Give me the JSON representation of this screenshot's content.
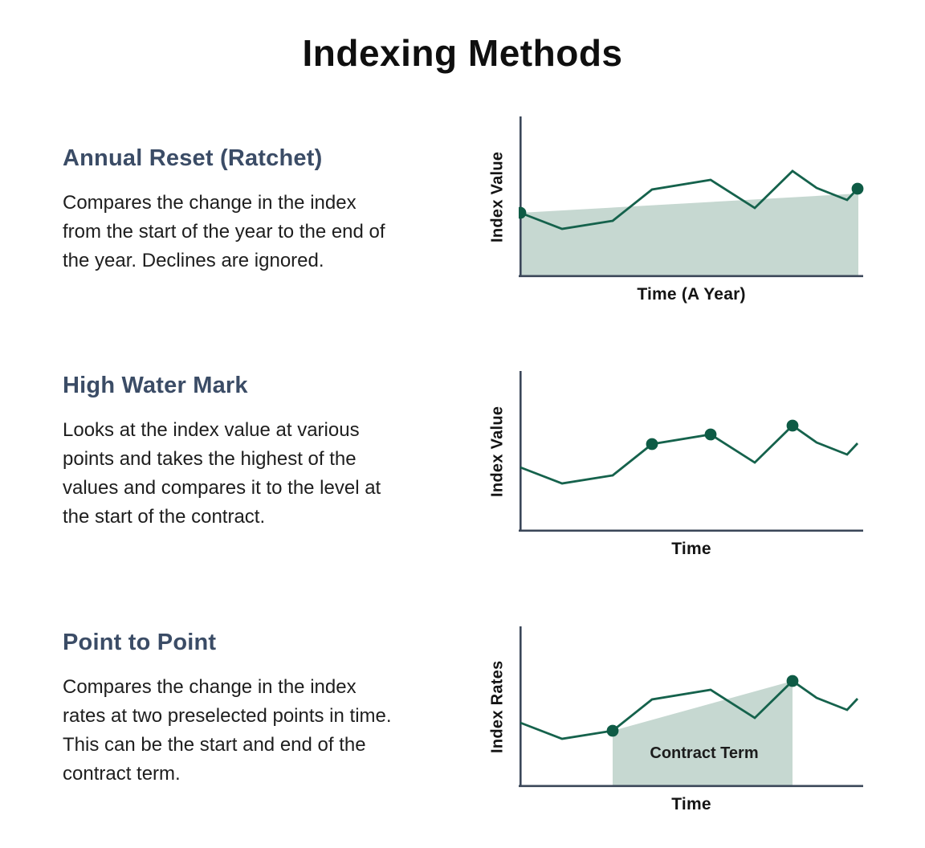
{
  "title": "Indexing Methods",
  "colors": {
    "line": "#15624c",
    "dot": "#0e5b45",
    "shade": "#c6d8d1",
    "axis": "#3b4759",
    "heading": "#3b4c66",
    "shade_label_text": "#1c1c1c"
  },
  "sections": [
    {
      "heading": "Annual Reset (Ratchet)",
      "description_lines": [
        "Compares the change in the index",
        "from the start of the year to the end of",
        "the year. Declines are ignored."
      ],
      "chart": {
        "ylabel": "Index Value",
        "xlabel": "Time (A Year)"
      }
    },
    {
      "heading": "High Water Mark",
      "description_lines": [
        "Looks at the index value at various",
        "points and takes the highest of the",
        "values and compares it to the level at",
        "the start of the contract."
      ],
      "chart": {
        "ylabel": "Index Value",
        "xlabel": "Time"
      }
    },
    {
      "heading": "Point to Point",
      "description_lines": [
        "Compares the change in the index",
        "rates at two preselected points in time.",
        "This can be the start and end of the",
        "contract term."
      ],
      "chart": {
        "ylabel": "Index Rates",
        "xlabel": "Time"
      }
    }
  ],
  "chart_data": [
    {
      "type": "line",
      "title": "Annual Reset (Ratchet)",
      "xlabel": "Time (A Year)",
      "ylabel": "Index Value",
      "axes_note": "illustrative axes without numeric ticks",
      "line_points": [
        [
          2,
          122
        ],
        [
          54,
          142
        ],
        [
          117,
          132
        ],
        [
          166,
          93
        ],
        [
          239,
          81
        ],
        [
          294,
          116
        ],
        [
          341,
          70
        ],
        [
          371,
          91
        ],
        [
          409,
          106
        ],
        [
          422,
          92
        ]
      ],
      "marked_points": [
        [
          2,
          122
        ],
        [
          422,
          92
        ]
      ],
      "shaded_region": [
        [
          2,
          122
        ],
        [
          423,
          98
        ],
        [
          423,
          200
        ],
        [
          2,
          200
        ]
      ],
      "shaded_region_label": null,
      "label_pos": null
    },
    {
      "type": "line",
      "title": "High Water Mark",
      "xlabel": "Time",
      "ylabel": "Index Value",
      "axes_note": "illustrative axes without numeric ticks",
      "line_points": [
        [
          2,
          122
        ],
        [
          54,
          142
        ],
        [
          117,
          132
        ],
        [
          166,
          93
        ],
        [
          239,
          81
        ],
        [
          294,
          116
        ],
        [
          341,
          70
        ],
        [
          371,
          91
        ],
        [
          409,
          106
        ],
        [
          422,
          92
        ]
      ],
      "marked_points": [
        [
          166,
          93
        ],
        [
          239,
          81
        ],
        [
          341,
          70
        ]
      ],
      "shaded_region": null,
      "shaded_region_label": null,
      "label_pos": null
    },
    {
      "type": "line",
      "title": "Point to Point",
      "xlabel": "Time",
      "ylabel": "Index Rates",
      "axes_note": "illustrative axes without numeric ticks",
      "line_points": [
        [
          2,
          122
        ],
        [
          54,
          142
        ],
        [
          117,
          132
        ],
        [
          166,
          93
        ],
        [
          239,
          81
        ],
        [
          294,
          116
        ],
        [
          341,
          70
        ],
        [
          371,
          91
        ],
        [
          409,
          106
        ],
        [
          422,
          92
        ]
      ],
      "marked_points": [
        [
          117,
          132
        ],
        [
          341,
          70
        ]
      ],
      "shaded_region": [
        [
          117,
          132
        ],
        [
          341,
          70
        ],
        [
          341,
          200
        ],
        [
          117,
          200
        ]
      ],
      "shaded_region_label": "Contract Term",
      "label_pos": [
        231,
        166
      ]
    }
  ]
}
